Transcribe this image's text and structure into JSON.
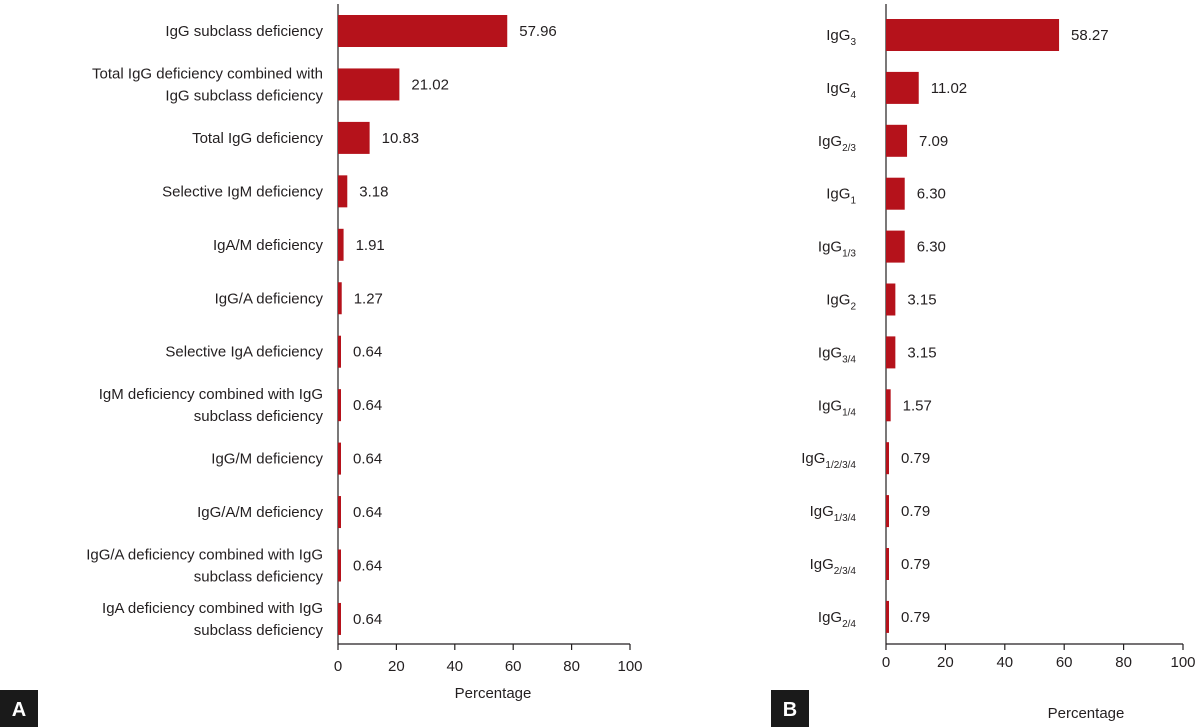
{
  "colors": {
    "bar": "#b5121b",
    "axis": "#231f20",
    "badge": "#1a1a1a",
    "badge_text": "#ffffff"
  },
  "chart_data": [
    {
      "panel": "A",
      "type": "bar",
      "orientation": "horizontal",
      "xlabel": "Percentage",
      "xlim": [
        0,
        100
      ],
      "xticks": [
        "0",
        "20",
        "40",
        "60",
        "80",
        "100"
      ],
      "categories": [
        [
          "IgG subclass deficiency"
        ],
        [
          "Total IgG deficiency combined with",
          "IgG subclass deficiency"
        ],
        [
          "Total IgG deficiency"
        ],
        [
          "Selective IgM deficiency"
        ],
        [
          "IgA/M deficiency"
        ],
        [
          "IgG/A deficiency"
        ],
        [
          "Selective IgA deficiency"
        ],
        [
          "IgM deficiency combined with IgG",
          "subclass deficiency"
        ],
        [
          "IgG/M deficiency"
        ],
        [
          "IgG/A/M deficiency"
        ],
        [
          "IgG/A deficiency combined with IgG",
          "subclass deficiency"
        ],
        [
          "IgA deficiency combined with IgG",
          "subclass deficiency"
        ]
      ],
      "values": [
        57.96,
        21.02,
        10.83,
        3.18,
        1.91,
        1.27,
        0.64,
        0.64,
        0.64,
        0.64,
        0.64,
        0.64
      ],
      "value_labels": [
        "57.96",
        "21.02",
        "10.83",
        "3.18",
        "1.91",
        "1.27",
        "0.64",
        "0.64",
        "0.64",
        "0.64",
        "0.64",
        "0.64"
      ]
    },
    {
      "panel": "B",
      "type": "bar",
      "orientation": "horizontal",
      "xlabel": "Percentage",
      "xlim": [
        0,
        100
      ],
      "xticks": [
        "0",
        "20",
        "40",
        "60",
        "80",
        "100"
      ],
      "categories": [
        {
          "base": "IgG",
          "sub": "3"
        },
        {
          "base": "IgG",
          "sub": "4"
        },
        {
          "base": "IgG",
          "sub": "2/3"
        },
        {
          "base": "IgG",
          "sub": "1"
        },
        {
          "base": "IgG",
          "sub": "1/3"
        },
        {
          "base": "IgG",
          "sub": "2"
        },
        {
          "base": "IgG",
          "sub": "3/4"
        },
        {
          "base": "IgG",
          "sub": "1/4"
        },
        {
          "base": "IgG",
          "sub": "1/2/3/4"
        },
        {
          "base": "IgG",
          "sub": "1/3/4"
        },
        {
          "base": "IgG",
          "sub": "2/3/4"
        },
        {
          "base": "IgG",
          "sub": "2/4"
        }
      ],
      "values": [
        58.27,
        11.02,
        7.09,
        6.3,
        6.3,
        3.15,
        3.15,
        1.57,
        0.79,
        0.79,
        0.79,
        0.79
      ],
      "value_labels": [
        "58.27",
        "11.02",
        "7.09",
        "6.30",
        "6.30",
        "3.15",
        "3.15",
        "1.57",
        "0.79",
        "0.79",
        "0.79",
        "0.79"
      ]
    }
  ]
}
